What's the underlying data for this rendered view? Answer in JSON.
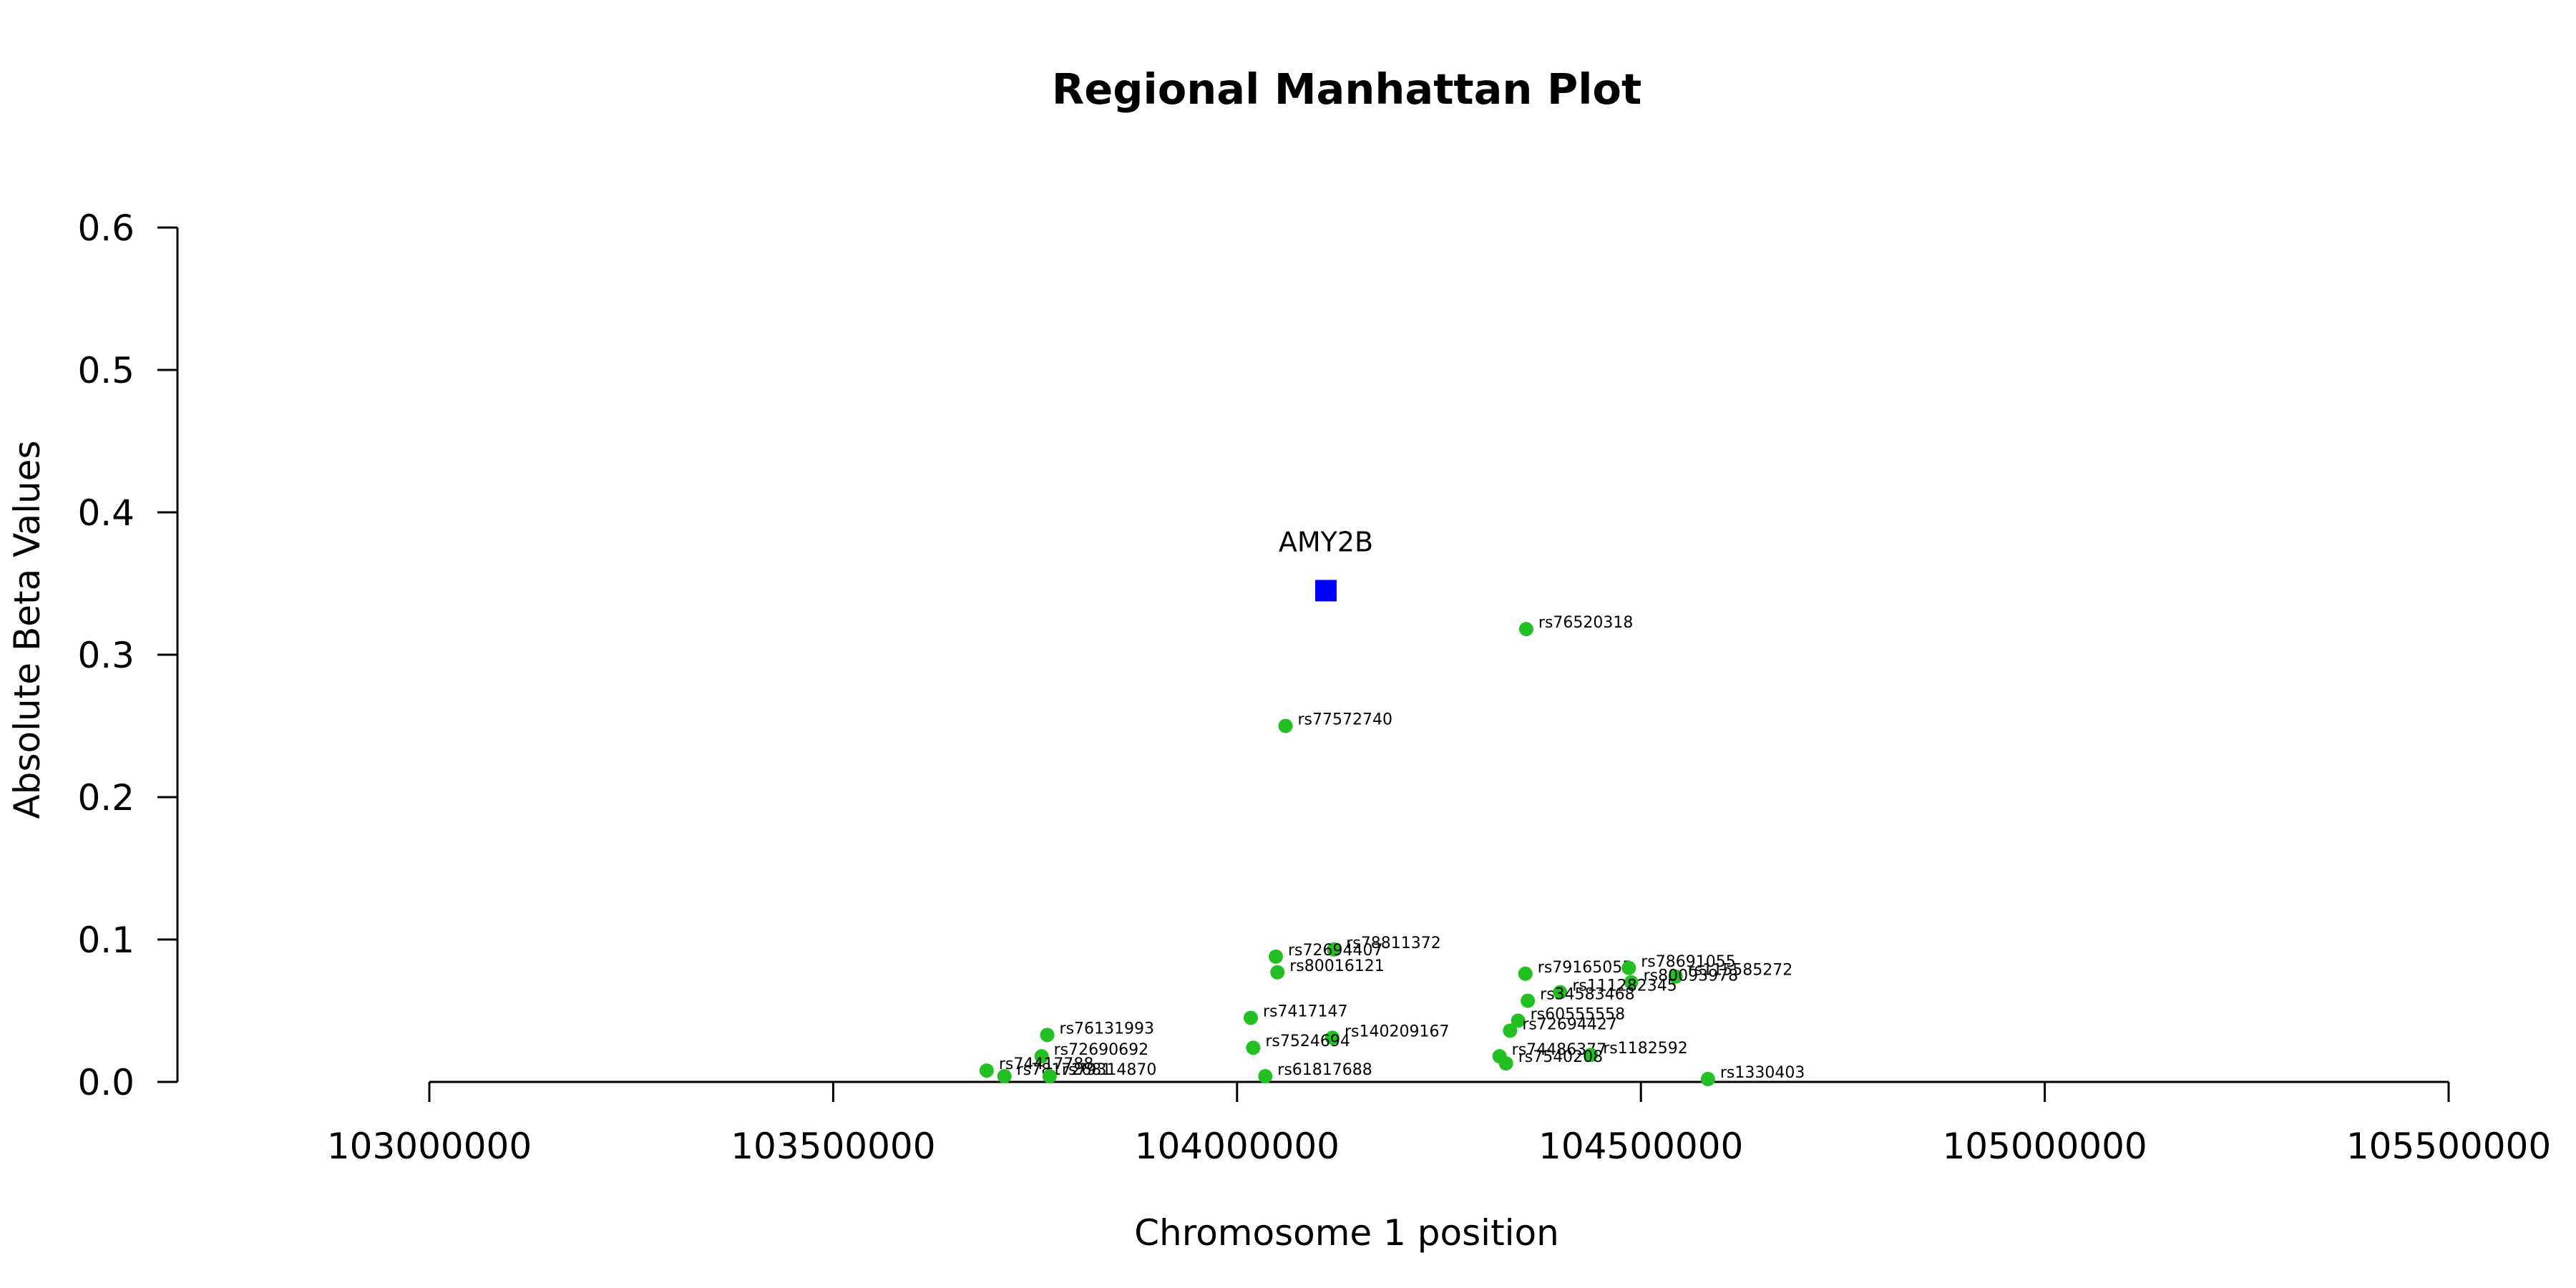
{
  "chart_data": {
    "type": "scatter",
    "title": "Regional Manhattan Plot",
    "xlabel": "Chromosome 1 position",
    "ylabel": "Absolute Beta Values",
    "xlim": [
      103000000,
      105500000
    ],
    "ylim": [
      0,
      0.6
    ],
    "x_ticks": [
      103000000,
      103500000,
      104000000,
      104500000,
      105000000,
      105500000
    ],
    "y_ticks": [
      0.0,
      0.1,
      0.2,
      0.3,
      0.4,
      0.5,
      0.6
    ],
    "x_tick_labels": [
      "103000000",
      "103500000",
      "104000000",
      "104500000",
      "105000000",
      "105500000"
    ],
    "y_tick_labels": [
      "0.0",
      "0.1",
      "0.2",
      "0.3",
      "0.4",
      "0.5",
      "0.6"
    ],
    "grid": false,
    "colors": {
      "snp": "#22c022",
      "gene": "#0000ff"
    },
    "gene": {
      "name": "AMY2B",
      "x": 104110000,
      "y": 0.345
    },
    "series": [
      {
        "points": [
          {
            "label": "rs76520318",
            "x": 104358000,
            "y": 0.318
          },
          {
            "label": "rs77572740",
            "x": 104060000,
            "y": 0.25
          },
          {
            "label": "rs78811372",
            "x": 104120000,
            "y": 0.093
          },
          {
            "label": "rs72694407",
            "x": 104048000,
            "y": 0.088
          },
          {
            "label": "rs80016121",
            "x": 104050000,
            "y": 0.077
          },
          {
            "label": "rs79165055",
            "x": 104357000,
            "y": 0.076
          },
          {
            "label": "rs78691055",
            "x": 104485000,
            "y": 0.08
          },
          {
            "label": "rs115585272",
            "x": 104543000,
            "y": 0.074
          },
          {
            "label": "rs80093978",
            "x": 104488000,
            "y": 0.07
          },
          {
            "label": "rs111282345",
            "x": 104400000,
            "y": 0.063
          },
          {
            "label": "rs34583468",
            "x": 104360000,
            "y": 0.057
          },
          {
            "label": "rs60555558",
            "x": 104348000,
            "y": 0.043
          },
          {
            "label": "rs72694427",
            "x": 104338000,
            "y": 0.036
          },
          {
            "label": "rs7417147",
            "x": 104017000,
            "y": 0.045
          },
          {
            "label": "rs140209167",
            "x": 104118000,
            "y": 0.031
          },
          {
            "label": "rs7524694",
            "x": 104020000,
            "y": 0.024
          },
          {
            "label": "rs74486377",
            "x": 104325000,
            "y": 0.018
          },
          {
            "label": "rs1182592",
            "x": 104438000,
            "y": 0.019
          },
          {
            "label": "rs7540208",
            "x": 104333000,
            "y": 0.013
          },
          {
            "label": "rs61817688",
            "x": 104035000,
            "y": 0.004
          },
          {
            "label": "rs1330403",
            "x": 104583000,
            "y": 0.002
          },
          {
            "label": "rs76131993",
            "x": 103765000,
            "y": 0.033
          },
          {
            "label": "rs72690692",
            "x": 103758000,
            "y": 0.018
          },
          {
            "label": "rs74417788",
            "x": 103690000,
            "y": 0.008
          },
          {
            "label": "rs78172681",
            "x": 103712000,
            "y": 0.004
          },
          {
            "label": "rs79314870",
            "x": 103768000,
            "y": 0.004
          }
        ]
      }
    ]
  }
}
